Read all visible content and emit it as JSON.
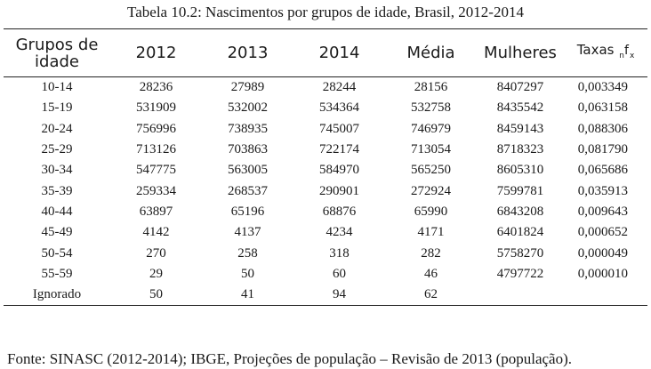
{
  "caption": "Tabela 10.2: Nascimentos por grupos de idade, Brasil, 2012-2014",
  "header": {
    "grupos_line1": "Grupos de",
    "grupos_line2": "idade",
    "y2012": "2012",
    "y2013": "2013",
    "y2014": "2014",
    "media": "Média",
    "mulheres": "Mulheres",
    "taxas": "Taxas",
    "taxas_n": "n",
    "taxas_f": "f",
    "taxas_x": "x"
  },
  "rows": [
    {
      "grupo": "10-14",
      "y2012": "28236",
      "y2013": "27989",
      "y2014": "28244",
      "media": "28156",
      "mulheres": "8407297",
      "taxa": "0,003349"
    },
    {
      "grupo": "15-19",
      "y2012": "531909",
      "y2013": "532002",
      "y2014": "534364",
      "media": "532758",
      "mulheres": "8435542",
      "taxa": "0,063158"
    },
    {
      "grupo": "20-24",
      "y2012": "756996",
      "y2013": "738935",
      "y2014": "745007",
      "media": "746979",
      "mulheres": "8459143",
      "taxa": "0,088306"
    },
    {
      "grupo": "25-29",
      "y2012": "713126",
      "y2013": "703863",
      "y2014": "722174",
      "media": "713054",
      "mulheres": "8718323",
      "taxa": "0,081790"
    },
    {
      "grupo": "30-34",
      "y2012": "547775",
      "y2013": "563005",
      "y2014": "584970",
      "media": "565250",
      "mulheres": "8605310",
      "taxa": "0,065686"
    },
    {
      "grupo": "35-39",
      "y2012": "259334",
      "y2013": "268537",
      "y2014": "290901",
      "media": "272924",
      "mulheres": "7599781",
      "taxa": "0,035913"
    },
    {
      "grupo": "40-44",
      "y2012": "63897",
      "y2013": "65196",
      "y2014": "68876",
      "media": "65990",
      "mulheres": "6843208",
      "taxa": "0,009643"
    },
    {
      "grupo": "45-49",
      "y2012": "4142",
      "y2013": "4137",
      "y2014": "4234",
      "media": "4171",
      "mulheres": "6401824",
      "taxa": "0,000652"
    },
    {
      "grupo": "50-54",
      "y2012": "270",
      "y2013": "258",
      "y2014": "318",
      "media": "282",
      "mulheres": "5758270",
      "taxa": "0,000049"
    },
    {
      "grupo": "55-59",
      "y2012": "29",
      "y2013": "50",
      "y2014": "60",
      "media": "46",
      "mulheres": "4797722",
      "taxa": "0,000010"
    },
    {
      "grupo": "Ignorado",
      "y2012": "50",
      "y2013": "41",
      "y2014": "94",
      "media": "62",
      "mulheres": "",
      "taxa": ""
    }
  ],
  "source": "Fonte: SINASC (2012-2014); IBGE, Projeções de população – Revisão de 2013 (população)."
}
